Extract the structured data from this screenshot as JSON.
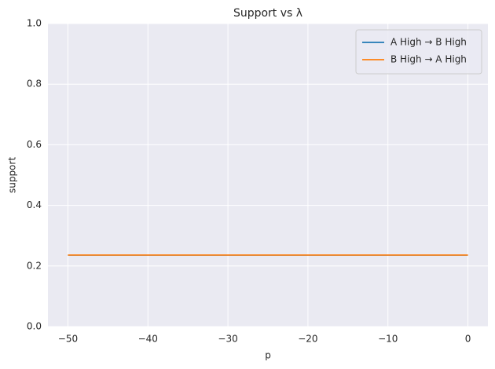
{
  "chart_data": {
    "type": "line",
    "title": "Support vs λ",
    "x_label": "p",
    "y_label": "support",
    "x": [
      -50,
      -45,
      -40,
      -35,
      -30,
      -25,
      -20,
      -15,
      -10,
      -5,
      0
    ],
    "series": [
      {
        "name": "A High → B High",
        "color": "#1f77b4",
        "values": [
          0.236,
          0.236,
          0.236,
          0.236,
          0.236,
          0.236,
          0.236,
          0.236,
          0.236,
          0.236,
          0.236
        ]
      },
      {
        "name": "B High → A High",
        "color": "#ff7f0e",
        "values": [
          0.236,
          0.236,
          0.236,
          0.236,
          0.236,
          0.236,
          0.236,
          0.236,
          0.236,
          0.236,
          0.236
        ]
      }
    ],
    "xlim": [
      -52.5,
      2.5
    ],
    "xticks": [
      {
        "value": -50,
        "label": "−50"
      },
      {
        "value": -40,
        "label": "−40"
      },
      {
        "value": -30,
        "label": "−30"
      },
      {
        "value": -20,
        "label": "−20"
      },
      {
        "value": -10,
        "label": "−10"
      },
      0
    ],
    "ylim": [
      0,
      1
    ],
    "yticks": [
      {
        "value": 0,
        "label": "0.0"
      },
      0.2,
      0.4,
      0.6,
      0.8,
      {
        "value": 1,
        "label": "1.0"
      }
    ],
    "grid": true,
    "legend": "upper-right"
  }
}
